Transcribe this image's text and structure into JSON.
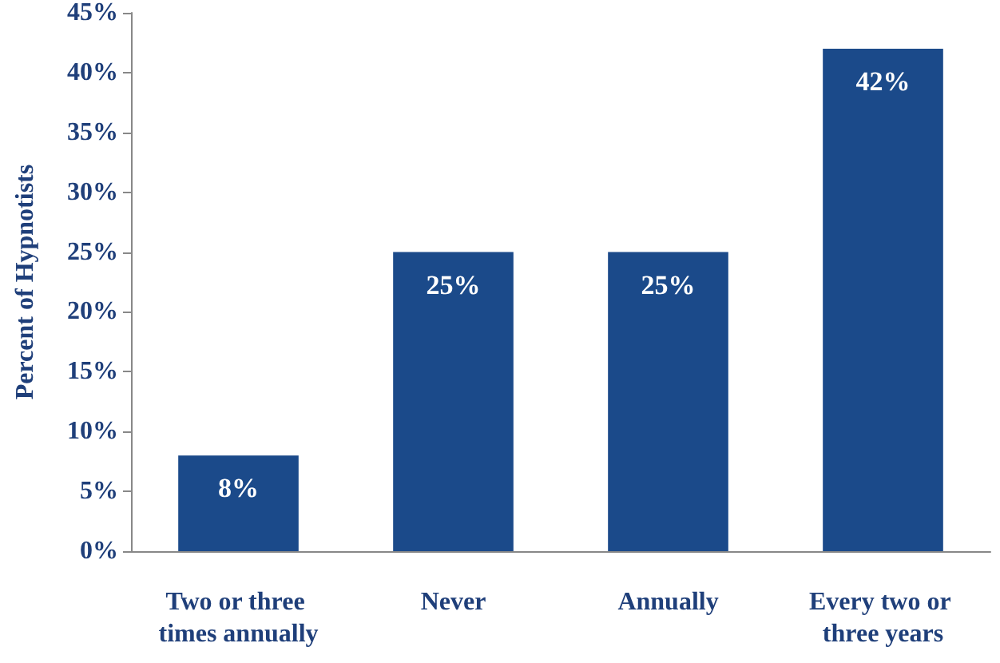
{
  "chart_data": {
    "type": "bar",
    "ylabel": "Percent of Hypnotists",
    "categories": [
      "Two or three times annually",
      "Never",
      "Annually",
      "Every two or three years"
    ],
    "values": [
      8,
      25,
      25,
      42
    ],
    "color": "#1b4a8a",
    "value_labels": [
      "8%",
      "25%",
      "25%",
      "42%"
    ],
    "ylim": [
      0,
      45
    ],
    "yticks": [
      {
        "value": 0,
        "label": "0%"
      },
      {
        "value": 5,
        "label": "5%"
      },
      {
        "value": 10,
        "label": "10%"
      },
      {
        "value": 15,
        "label": "15%"
      },
      {
        "value": 20,
        "label": "20%"
      },
      {
        "value": 25,
        "label": "25%"
      },
      {
        "value": 30,
        "label": "30%"
      },
      {
        "value": 35,
        "label": "35%"
      },
      {
        "value": 40,
        "label": "40%"
      },
      {
        "value": 45,
        "label": "45%"
      }
    ],
    "grid": false
  }
}
